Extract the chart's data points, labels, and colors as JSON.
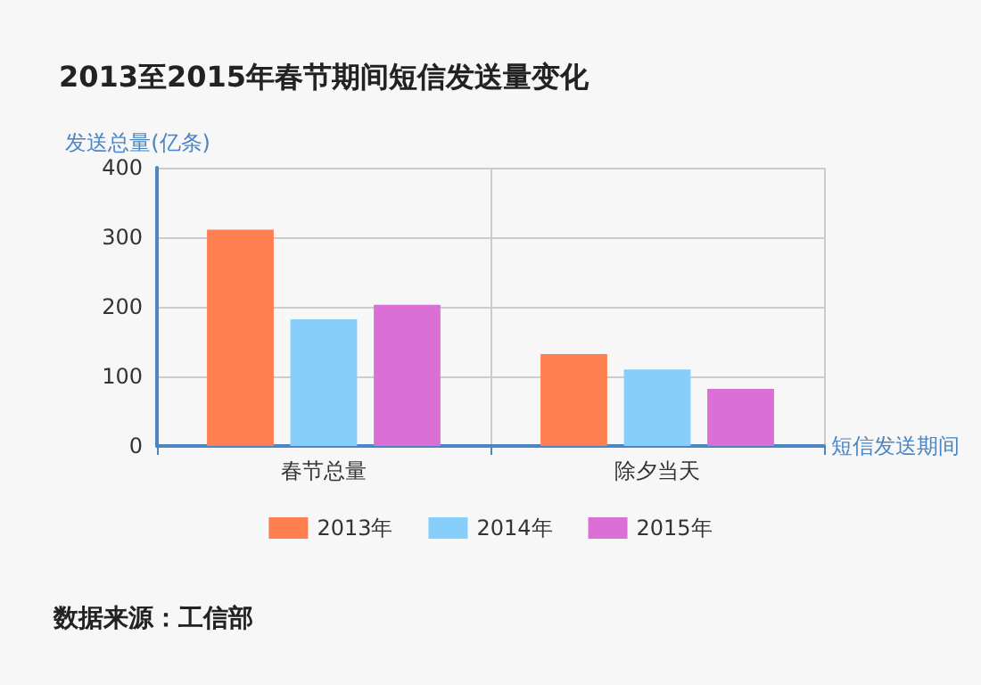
{
  "chart_data": {
    "type": "bar",
    "title": "2013至2015年春节期间短信发送量变化",
    "xlabel": "短信发送期间",
    "ylabel": "发送总量(亿条)",
    "categories": [
      "春节总量",
      "除夕当天"
    ],
    "series": [
      {
        "name": "2013年",
        "color": "#ff7f50",
        "values": [
          311,
          132
        ]
      },
      {
        "name": "2014年",
        "color": "#87cefa",
        "values": [
          182,
          110
        ]
      },
      {
        "name": "2015年",
        "color": "#da70d6",
        "values": [
          203,
          82
        ]
      }
    ],
    "ylim": [
      0,
      400
    ],
    "yticks": [
      0,
      100,
      200,
      300,
      400
    ],
    "grid": true,
    "legend": "bottom",
    "annotations": [
      "数据来源：工信部"
    ]
  }
}
